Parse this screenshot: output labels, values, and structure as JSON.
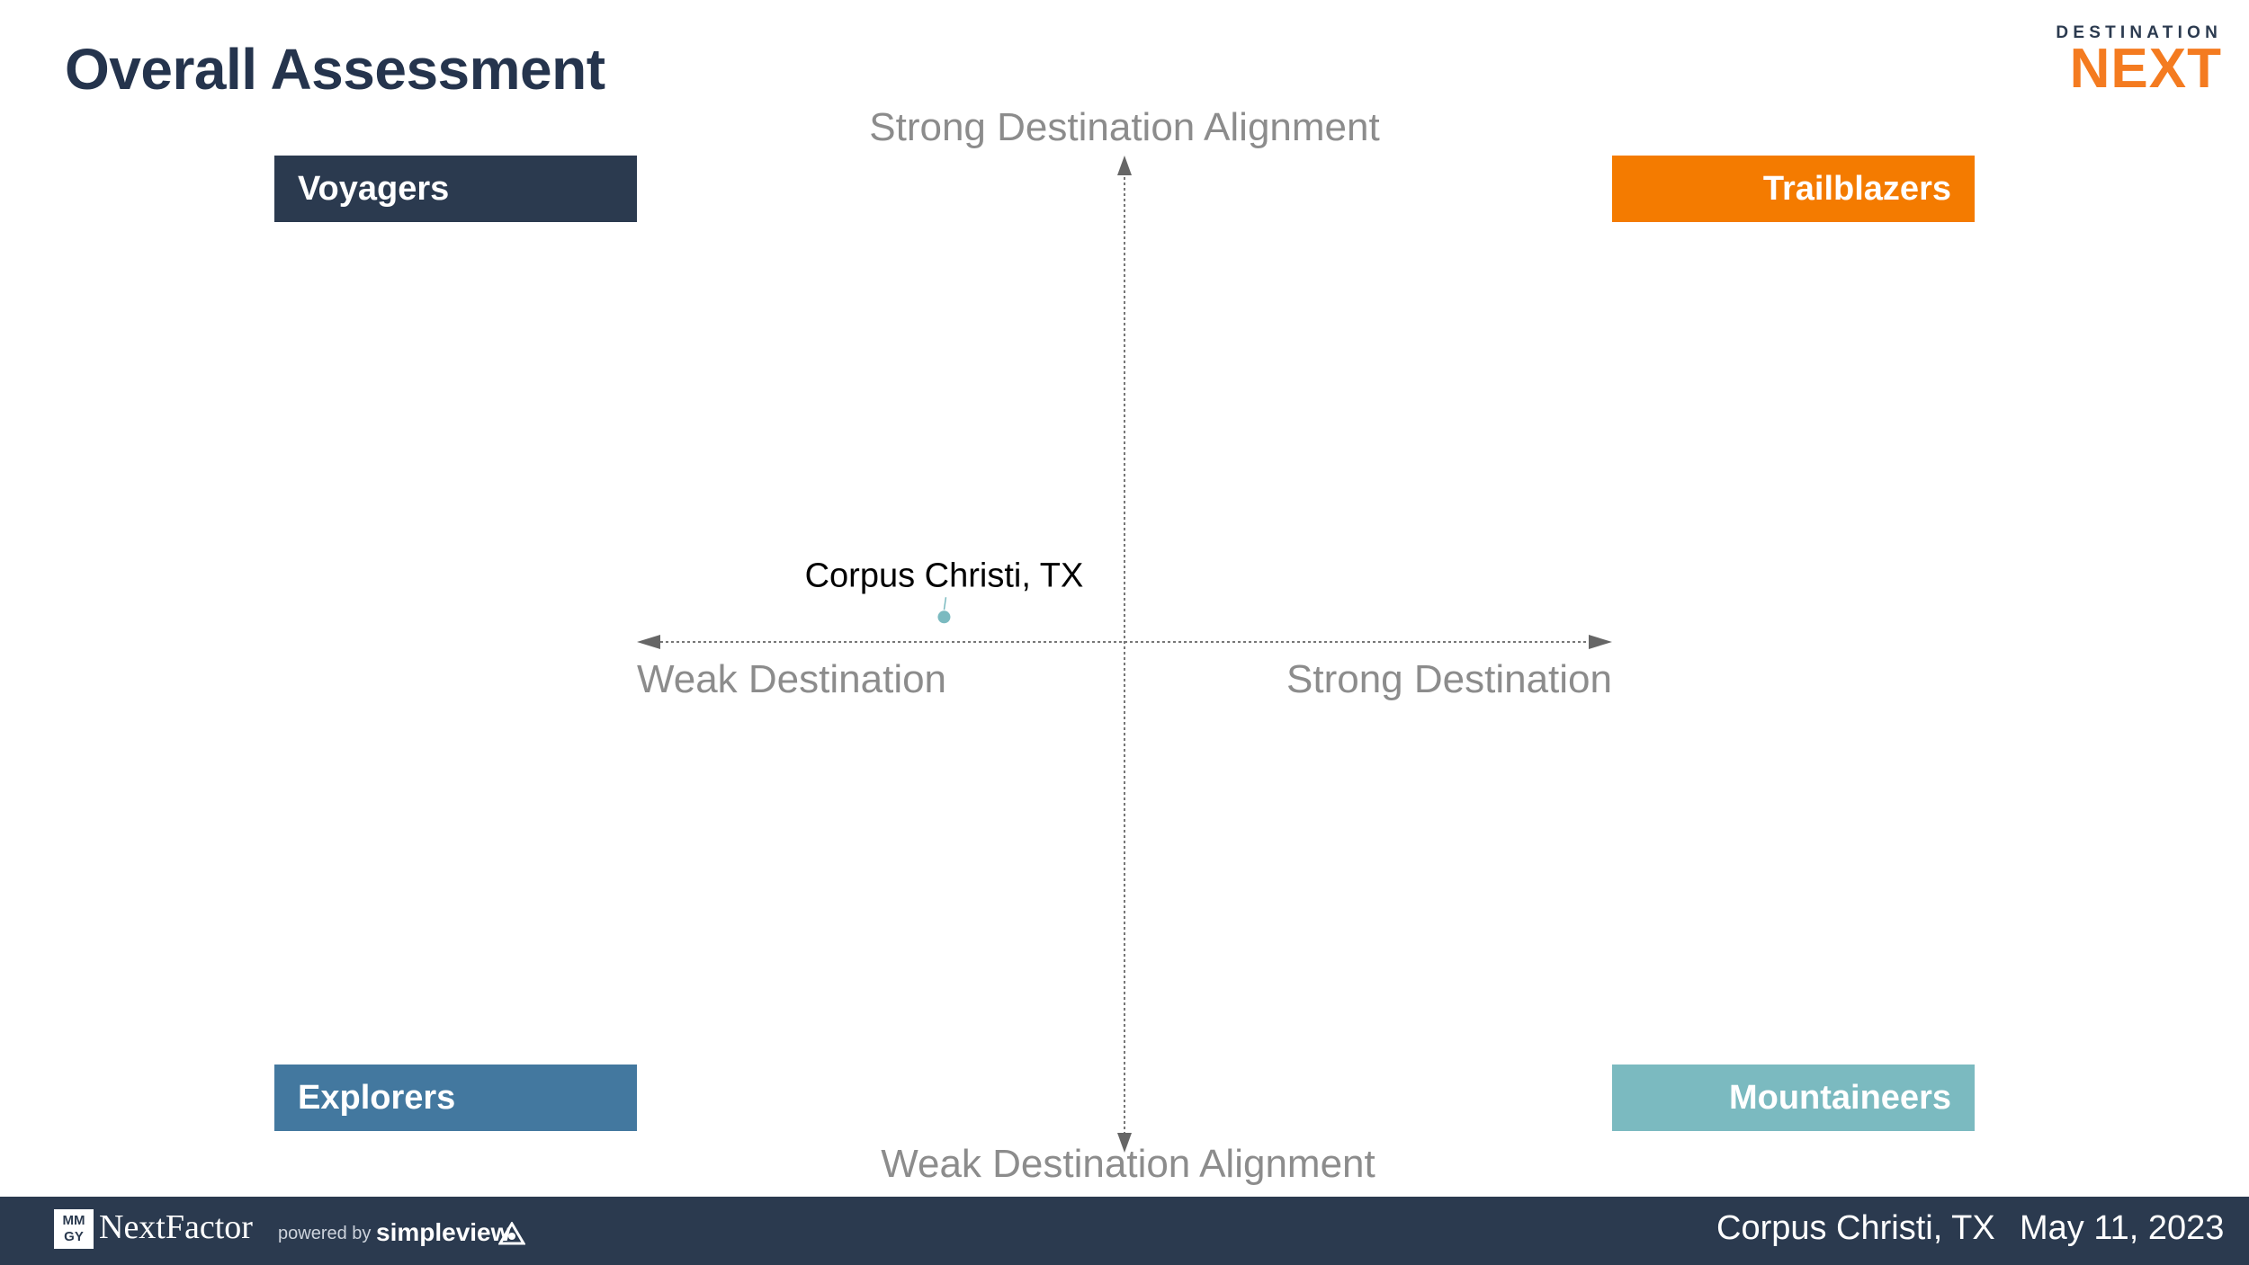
{
  "header": {
    "title": "Overall Assessment",
    "logo": {
      "top_text": "DESTINATION",
      "main_text": "NEXT",
      "accent": "#f47b20"
    }
  },
  "quadrants": {
    "top_left": {
      "label": "Voyagers",
      "color": "#2b3a4f"
    },
    "top_right": {
      "label": "Trailblazers",
      "color": "#f47b00"
    },
    "bottom_left": {
      "label": "Explorers",
      "color": "#43789f"
    },
    "bottom_right": {
      "label": "Mountaineers",
      "color": "#7bbac0"
    }
  },
  "chart_data": {
    "type": "scatter",
    "title": "",
    "axis_labels": {
      "top": "Strong Destination Alignment",
      "bottom": "Weak Destination Alignment",
      "left": "Weak Destination",
      "right": "Strong Destination"
    },
    "xlim": [
      -1,
      1
    ],
    "ylim": [
      -1,
      1
    ],
    "grid": false,
    "points": [
      {
        "label": "Corpus Christi, TX",
        "x": -0.37,
        "y": 0.05,
        "color": "#7bbac0"
      }
    ]
  },
  "footer": {
    "brand_badge": "MM GY",
    "brand": "NextFactor",
    "powered_by": "powered by",
    "partner": "simpleview",
    "location": "Corpus Christi, TX",
    "date": "May 11, 2023"
  }
}
